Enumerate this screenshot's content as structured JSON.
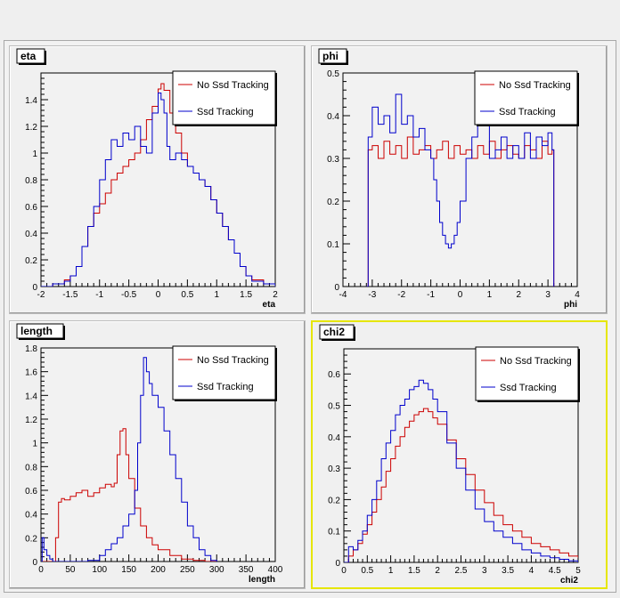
{
  "chart_data": [
    {
      "type": "line",
      "title": "eta",
      "xlabel": "eta",
      "xlim": [
        -2,
        2
      ],
      "ylim": [
        0,
        1.6
      ],
      "xticks": [
        "-2",
        "-1.5",
        "-1",
        "-0.5",
        "0",
        "0.5",
        "1",
        "1.5",
        "2"
      ],
      "yticks": [
        "0",
        "0.2",
        "0.4",
        "0.6",
        "0.8",
        "1",
        "1.2",
        "1.4"
      ],
      "legend_position": "top-right",
      "series": [
        {
          "name": "No Ssd Tracking",
          "color": "#cc0000",
          "x": [
            -2,
            -1.8,
            -1.6,
            -1.5,
            -1.4,
            -1.3,
            -1.2,
            -1.1,
            -1.0,
            -0.9,
            -0.8,
            -0.7,
            -0.6,
            -0.5,
            -0.4,
            -0.3,
            -0.2,
            -0.1,
            0.0,
            0.05,
            0.1,
            0.2,
            0.3,
            0.4,
            0.5,
            0.6,
            0.7,
            0.8,
            0.9,
            1.0,
            1.1,
            1.2,
            1.3,
            1.4,
            1.5,
            1.6,
            1.8,
            2.0
          ],
          "y": [
            0.0,
            0.02,
            0.05,
            0.08,
            0.15,
            0.3,
            0.45,
            0.55,
            0.62,
            0.7,
            0.8,
            0.85,
            0.9,
            0.95,
            1.0,
            1.1,
            1.25,
            1.35,
            1.48,
            1.52,
            1.47,
            1.3,
            1.15,
            1.0,
            0.9,
            0.85,
            0.8,
            0.75,
            0.65,
            0.55,
            0.45,
            0.35,
            0.25,
            0.15,
            0.08,
            0.05,
            0.02,
            0.0
          ]
        },
        {
          "name": "Ssd Tracking",
          "color": "#0000cc",
          "x": [
            -2,
            -1.8,
            -1.6,
            -1.5,
            -1.4,
            -1.3,
            -1.2,
            -1.1,
            -1.0,
            -0.9,
            -0.8,
            -0.7,
            -0.6,
            -0.5,
            -0.4,
            -0.3,
            -0.2,
            -0.1,
            0.0,
            0.05,
            0.1,
            0.15,
            0.2,
            0.3,
            0.4,
            0.5,
            0.6,
            0.7,
            0.8,
            0.9,
            1.0,
            1.1,
            1.2,
            1.3,
            1.4,
            1.5,
            1.6,
            1.8,
            2.0
          ],
          "y": [
            0.0,
            0.02,
            0.04,
            0.08,
            0.15,
            0.3,
            0.45,
            0.6,
            0.8,
            0.95,
            1.1,
            1.05,
            1.15,
            1.1,
            1.2,
            1.05,
            1.0,
            1.3,
            1.45,
            1.4,
            1.3,
            1.05,
            0.95,
            1.0,
            0.95,
            0.9,
            0.85,
            0.8,
            0.75,
            0.65,
            0.55,
            0.45,
            0.35,
            0.25,
            0.15,
            0.08,
            0.04,
            0.02,
            0.0
          ]
        }
      ]
    },
    {
      "type": "line",
      "title": "phi",
      "xlabel": "phi",
      "xlim": [
        -4,
        4
      ],
      "ylim": [
        0,
        0.5
      ],
      "xticks": [
        "-4",
        "-3",
        "-2",
        "-1",
        "0",
        "1",
        "2",
        "3",
        "4"
      ],
      "yticks": [
        "0",
        "0.1",
        "0.2",
        "0.3",
        "0.4",
        "0.5"
      ],
      "legend_position": "top-right",
      "series": [
        {
          "name": "No Ssd Tracking",
          "color": "#cc0000",
          "x": [
            -3.2,
            -3.14,
            -3.0,
            -2.8,
            -2.6,
            -2.4,
            -2.2,
            -2.0,
            -1.8,
            -1.6,
            -1.4,
            -1.2,
            -1.0,
            -0.8,
            -0.6,
            -0.4,
            -0.2,
            0.0,
            0.2,
            0.4,
            0.6,
            0.8,
            1.0,
            1.2,
            1.4,
            1.6,
            1.8,
            2.0,
            2.2,
            2.4,
            2.6,
            2.8,
            3.0,
            3.14,
            3.2
          ],
          "y": [
            0.0,
            0.32,
            0.33,
            0.3,
            0.34,
            0.31,
            0.33,
            0.3,
            0.35,
            0.31,
            0.32,
            0.33,
            0.3,
            0.32,
            0.34,
            0.3,
            0.33,
            0.31,
            0.32,
            0.3,
            0.33,
            0.31,
            0.34,
            0.3,
            0.32,
            0.33,
            0.31,
            0.3,
            0.33,
            0.32,
            0.3,
            0.34,
            0.31,
            0.32,
            0.0
          ]
        },
        {
          "name": "Ssd Tracking",
          "color": "#0000cc",
          "x": [
            -3.2,
            -3.14,
            -3.0,
            -2.8,
            -2.6,
            -2.4,
            -2.2,
            -2.0,
            -1.8,
            -1.6,
            -1.4,
            -1.2,
            -1.0,
            -0.9,
            -0.8,
            -0.7,
            -0.6,
            -0.5,
            -0.4,
            -0.3,
            -0.2,
            -0.1,
            0.0,
            0.2,
            0.4,
            0.6,
            0.8,
            1.0,
            1.2,
            1.4,
            1.6,
            1.8,
            2.0,
            2.2,
            2.4,
            2.6,
            2.8,
            3.0,
            3.14,
            3.2
          ],
          "y": [
            0.0,
            0.35,
            0.42,
            0.38,
            0.4,
            0.36,
            0.45,
            0.38,
            0.4,
            0.35,
            0.37,
            0.32,
            0.3,
            0.25,
            0.2,
            0.15,
            0.12,
            0.1,
            0.09,
            0.1,
            0.12,
            0.15,
            0.2,
            0.3,
            0.35,
            0.38,
            0.4,
            0.3,
            0.32,
            0.35,
            0.3,
            0.33,
            0.3,
            0.36,
            0.3,
            0.35,
            0.33,
            0.36,
            0.32,
            0.0
          ]
        }
      ]
    },
    {
      "type": "line",
      "title": "length",
      "xlabel": "length",
      "xlim": [
        0,
        400
      ],
      "ylim": [
        0,
        1.8
      ],
      "xticks": [
        "0",
        "50",
        "100",
        "150",
        "200",
        "250",
        "300",
        "350",
        "400"
      ],
      "yticks": [
        "0",
        "0.2",
        "0.4",
        "0.6",
        "0.8",
        "1",
        "1.2",
        "1.4",
        "1.6",
        "1.8"
      ],
      "legend_position": "top-right",
      "series": [
        {
          "name": "No Ssd Tracking",
          "color": "#cc0000",
          "x": [
            0,
            20,
            25,
            30,
            35,
            40,
            50,
            60,
            70,
            80,
            90,
            100,
            110,
            120,
            125,
            130,
            135,
            140,
            145,
            150,
            160,
            170,
            180,
            190,
            200,
            220,
            240,
            260,
            280,
            300
          ],
          "y": [
            0.0,
            0.0,
            0.2,
            0.5,
            0.53,
            0.52,
            0.55,
            0.58,
            0.6,
            0.55,
            0.58,
            0.62,
            0.65,
            0.63,
            0.66,
            0.9,
            1.1,
            1.12,
            0.9,
            0.7,
            0.45,
            0.3,
            0.2,
            0.14,
            0.1,
            0.05,
            0.02,
            0.01,
            0.0,
            0.0
          ]
        },
        {
          "name": "Ssd Tracking",
          "color": "#0000cc",
          "x": [
            0,
            2,
            5,
            10,
            15,
            20,
            50,
            80,
            100,
            110,
            120,
            130,
            140,
            150,
            160,
            165,
            170,
            175,
            180,
            185,
            190,
            200,
            210,
            220,
            230,
            240,
            250,
            260,
            270,
            280,
            290,
            300
          ],
          "y": [
            0.0,
            0.2,
            0.1,
            0.05,
            0.02,
            0.0,
            0.0,
            0.01,
            0.05,
            0.1,
            0.15,
            0.2,
            0.3,
            0.4,
            0.6,
            1.0,
            1.4,
            1.72,
            1.6,
            1.5,
            1.4,
            1.3,
            1.1,
            0.9,
            0.7,
            0.5,
            0.3,
            0.2,
            0.1,
            0.05,
            0.01,
            0.0
          ]
        }
      ]
    },
    {
      "type": "line",
      "title": "chi2",
      "xlabel": "chi2",
      "xlim": [
        0,
        5
      ],
      "ylim": [
        0,
        0.68
      ],
      "xticks": [
        "0",
        "0.5",
        "1",
        "1.5",
        "2",
        "2.5",
        "3",
        "3.5",
        "4",
        "4.5",
        "5"
      ],
      "yticks": [
        "0",
        "0.1",
        "0.2",
        "0.3",
        "0.4",
        "0.5",
        "0.6"
      ],
      "legend_position": "top-right",
      "selected": true,
      "series": [
        {
          "name": "No Ssd Tracking",
          "color": "#cc0000",
          "x": [
            0,
            0.1,
            0.2,
            0.3,
            0.4,
            0.5,
            0.6,
            0.7,
            0.8,
            0.9,
            1.0,
            1.1,
            1.2,
            1.3,
            1.4,
            1.5,
            1.6,
            1.7,
            1.8,
            1.9,
            2.0,
            2.2,
            2.4,
            2.6,
            2.8,
            3.0,
            3.2,
            3.4,
            3.6,
            3.8,
            4.0,
            4.2,
            4.4,
            4.6,
            4.8,
            5.0
          ],
          "y": [
            0.0,
            0.02,
            0.04,
            0.06,
            0.09,
            0.12,
            0.16,
            0.2,
            0.24,
            0.29,
            0.33,
            0.37,
            0.4,
            0.43,
            0.45,
            0.47,
            0.48,
            0.49,
            0.48,
            0.46,
            0.44,
            0.39,
            0.33,
            0.28,
            0.23,
            0.19,
            0.15,
            0.12,
            0.1,
            0.08,
            0.06,
            0.05,
            0.04,
            0.03,
            0.02,
            0.015
          ]
        },
        {
          "name": "Ssd Tracking",
          "color": "#0000cc",
          "x": [
            0,
            0.1,
            0.2,
            0.3,
            0.4,
            0.5,
            0.6,
            0.7,
            0.8,
            0.9,
            1.0,
            1.1,
            1.2,
            1.3,
            1.4,
            1.5,
            1.6,
            1.7,
            1.8,
            1.9,
            2.0,
            2.2,
            2.4,
            2.6,
            2.8,
            3.0,
            3.2,
            3.4,
            3.6,
            3.8,
            4.0,
            4.2,
            4.4,
            4.6,
            4.8,
            5.0
          ],
          "y": [
            0.0,
            0.05,
            0.04,
            0.07,
            0.1,
            0.15,
            0.2,
            0.26,
            0.33,
            0.38,
            0.42,
            0.47,
            0.5,
            0.52,
            0.55,
            0.56,
            0.58,
            0.57,
            0.55,
            0.52,
            0.48,
            0.38,
            0.3,
            0.23,
            0.17,
            0.13,
            0.1,
            0.08,
            0.06,
            0.04,
            0.03,
            0.02,
            0.015,
            0.01,
            0.005,
            0.0
          ]
        }
      ]
    }
  ]
}
